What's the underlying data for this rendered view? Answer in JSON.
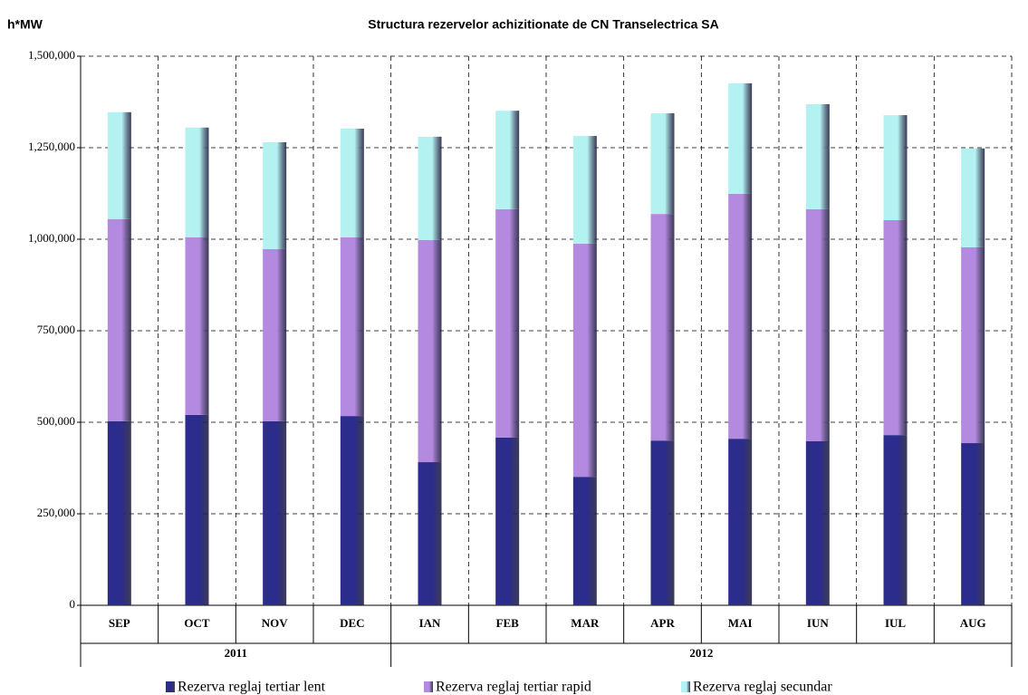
{
  "chart_data": {
    "type": "stacked_bar",
    "title": "Structura rezervelor achizitionate de CN Transelectrica SA",
    "y_axis_label": "h*MW",
    "category_groups": [
      {
        "label": "2011",
        "categories": [
          "SEP",
          "OCT",
          "NOV",
          "DEC"
        ]
      },
      {
        "label": "2012",
        "categories": [
          "IAN",
          "FEB",
          "MAR",
          "APR",
          "MAI",
          "IUN",
          "IUL",
          "AUG"
        ]
      }
    ],
    "series": [
      {
        "name": "Rezerva reglaj tertiar lent",
        "color": "#2c2c8c",
        "values": [
          503000,
          520000,
          503000,
          517000,
          391000,
          458000,
          351000,
          450000,
          455000,
          448000,
          465000,
          443000
        ]
      },
      {
        "name": "Rezerva reglaj tertiar rapid",
        "color": "#b48ae0",
        "values": [
          552000,
          485000,
          470000,
          488000,
          607000,
          624000,
          637000,
          619000,
          669000,
          634000,
          587000,
          535000
        ]
      },
      {
        "name": "Rezerva reglaj secundar",
        "color": "#b4f2f2",
        "values": [
          292000,
          300000,
          292000,
          297000,
          282000,
          269000,
          294000,
          275000,
          302000,
          287000,
          287000,
          270000
        ]
      }
    ],
    "ylim": [
      0,
      1500000
    ],
    "yticks": [
      0,
      {
        "value": 250000,
        "label": "250,000"
      },
      {
        "value": 500000,
        "label": "500,000"
      },
      {
        "value": 750000,
        "label": "750,000"
      },
      {
        "value": 1000000,
        "label": "1,000,000"
      },
      {
        "value": 1250000,
        "label": "1,250,000"
      },
      {
        "value": 1500000,
        "label": "1,500,000"
      }
    ],
    "grid": true,
    "legend": "bottom"
  }
}
